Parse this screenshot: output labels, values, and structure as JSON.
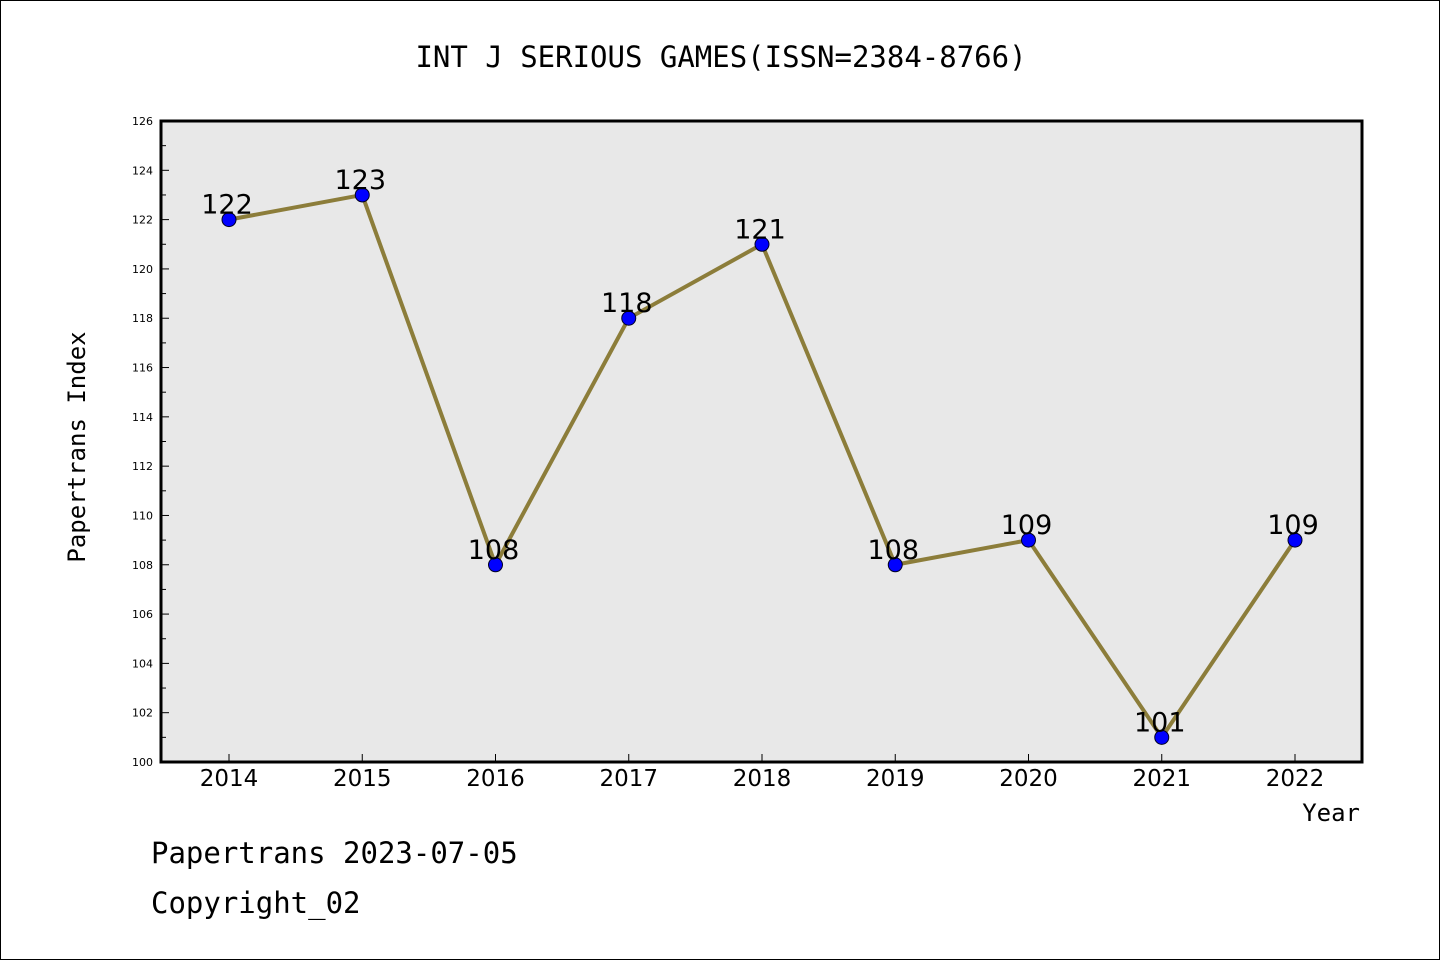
{
  "chart_data": {
    "type": "line",
    "title": "INT J SERIOUS GAMES(ISSN=2384-8766)",
    "xlabel": "Year",
    "ylabel": "Papertrans Index",
    "categories": [
      "2014",
      "2015",
      "2016",
      "2017",
      "2018",
      "2019",
      "2020",
      "2021",
      "2022"
    ],
    "series": [
      {
        "values": [
          122,
          123,
          108,
          118,
          121,
          108,
          109,
          101,
          109
        ]
      }
    ],
    "data_labels": [
      "122",
      "123",
      "108",
      "118",
      "121",
      "108",
      "109",
      "101",
      "109"
    ],
    "ylim": [
      100,
      126
    ],
    "yticks": [
      "100",
      "102",
      "104",
      "106",
      "108",
      "110",
      "112",
      "114",
      "116",
      "118",
      "120",
      "122",
      "124",
      "126"
    ],
    "grid": false,
    "legend": "none",
    "colors": {
      "line": "#8c7d3a",
      "marker": "#0000ff",
      "plot_background": "#e8e8e8"
    }
  },
  "footer": {
    "line1": "Papertrans 2023-07-05",
    "line2": "Copyright_02"
  }
}
